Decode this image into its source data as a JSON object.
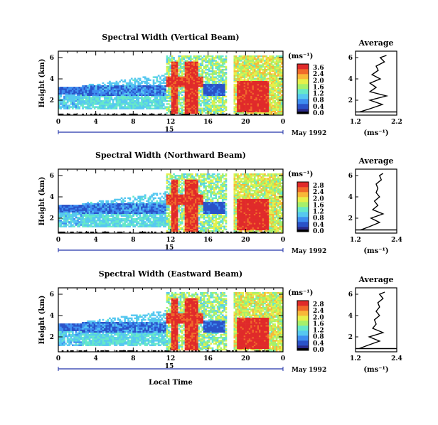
{
  "chart_data": [
    {
      "type": "heatmap",
      "title": "Spectral Width (Vertical Beam)",
      "ylabel": "Height (km)",
      "yticks": [
        "2",
        "4",
        "6"
      ],
      "ylim": [
        0.6,
        6.6
      ],
      "xticks": [
        "0",
        "4",
        "8",
        "12",
        "16",
        "20",
        "0"
      ],
      "xlim": [
        0,
        24
      ],
      "date_day": "15",
      "date_label": "May 1992",
      "colorbar": {
        "unit": "(ms⁻¹)",
        "ticks": [
          "3.6",
          "2.4",
          "2.0",
          "1.6",
          "1.2",
          "0.8",
          "0.4",
          "0.0"
        ]
      },
      "average": {
        "title": "Average",
        "xlabel": "(ms⁻¹)",
        "xticks": [
          "1.2",
          "2.2"
        ],
        "xlim": [
          1.2,
          2.2
        ],
        "yticks": [
          "2",
          "4",
          "6"
        ],
        "heights": [
          0.9,
          1.2,
          1.6,
          2.0,
          2.4,
          2.8,
          3.2,
          3.6,
          4.0,
          4.4,
          4.8,
          5.2,
          5.6,
          6.0,
          6.2
        ],
        "values": [
          1.3,
          1.55,
          1.85,
          1.55,
          1.95,
          1.55,
          1.7,
          1.55,
          1.8,
          1.6,
          1.75,
          1.7,
          1.9,
          1.8,
          1.95
        ]
      }
    },
    {
      "type": "heatmap",
      "title": "Spectral Width (Northward Beam)",
      "ylabel": "Height (km)",
      "yticks": [
        "2",
        "4",
        "6"
      ],
      "ylim": [
        0.6,
        6.6
      ],
      "xticks": [
        "0",
        "4",
        "8",
        "12",
        "16",
        "20",
        "0"
      ],
      "xlim": [
        0,
        24
      ],
      "date_day": "15",
      "date_label": "May 1992",
      "colorbar": {
        "unit": "(ms⁻¹)",
        "ticks": [
          "2.8",
          "2.4",
          "2.0",
          "1.6",
          "1.2",
          "0.8",
          "0.4",
          "0.0"
        ]
      },
      "average": {
        "title": "Average",
        "xlabel": "(ms⁻¹)",
        "xticks": [
          "1.2",
          "2.4"
        ],
        "xlim": [
          1.2,
          2.4
        ],
        "yticks": [
          "2",
          "4",
          "6"
        ],
        "heights": [
          0.9,
          1.2,
          1.6,
          2.0,
          2.4,
          2.8,
          3.2,
          3.6,
          4.0,
          4.4,
          4.8,
          5.2,
          5.6,
          6.0,
          6.2
        ],
        "values": [
          1.35,
          1.6,
          1.9,
          1.65,
          2.0,
          1.7,
          1.85,
          1.75,
          1.9,
          1.8,
          1.85,
          1.8,
          1.95,
          1.9,
          2.0
        ]
      }
    },
    {
      "type": "heatmap",
      "title": "Spectral Width (Eastward Beam)",
      "ylabel": "Height (km)",
      "yticks": [
        "2",
        "4",
        "6"
      ],
      "ylim": [
        0.6,
        6.6
      ],
      "xticks": [
        "0",
        "4",
        "8",
        "12",
        "16",
        "20",
        "0"
      ],
      "xlim": [
        0,
        24
      ],
      "date_day": "15",
      "date_label": "May 1992",
      "xlabel": "Local Time",
      "colorbar": {
        "unit": "(ms⁻¹)",
        "ticks": [
          "2.8",
          "2.4",
          "2.0",
          "1.6",
          "1.2",
          "0.8",
          "0.4",
          "0.0"
        ]
      },
      "average": {
        "title": "Average",
        "xlabel": "(ms⁻¹)",
        "xticks": [
          "1.2",
          "2.4"
        ],
        "xlim": [
          1.2,
          2.4
        ],
        "yticks": [
          "2",
          "4",
          "6"
        ],
        "heights": [
          0.9,
          1.2,
          1.6,
          2.0,
          2.4,
          2.8,
          3.2,
          3.6,
          4.0,
          4.4,
          4.8,
          5.2,
          5.6,
          6.0,
          6.2
        ],
        "values": [
          1.3,
          1.55,
          1.9,
          1.6,
          2.0,
          1.7,
          1.8,
          1.75,
          1.9,
          1.8,
          1.9,
          1.85,
          2.0,
          1.9,
          2.05
        ]
      }
    }
  ],
  "colors": {
    "colormap": [
      "#2a2a8a",
      "#2a52c8",
      "#3e8ef0",
      "#56c8f0",
      "#66e8c8",
      "#a6f06a",
      "#e6f04a",
      "#f8b838",
      "#f06a2a",
      "#e02a2a"
    ],
    "black_band": "#000000"
  }
}
